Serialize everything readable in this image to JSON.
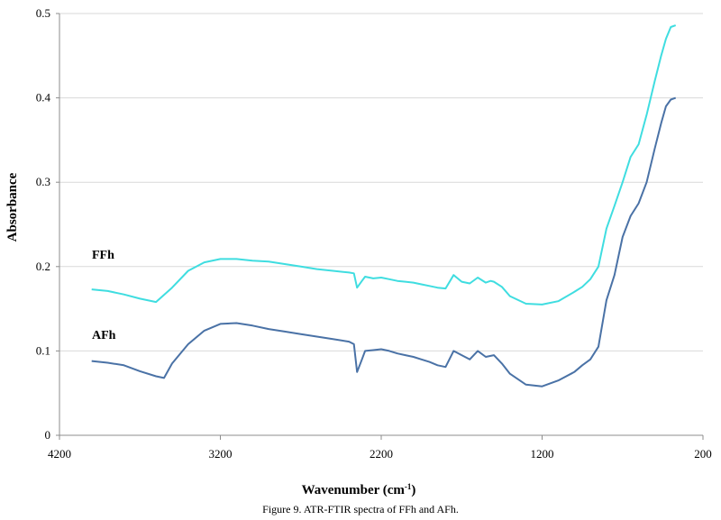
{
  "chart_data": {
    "type": "line",
    "title": "",
    "caption": "Figure 9. ATR-FTIR spectra of FFh and AFh.",
    "xlabel": "Wavenumber (cm",
    "xlabel_sup": "-1",
    "xlabel_suffix": ")",
    "ylabel": "Absorbance",
    "xlim": [
      4200,
      200
    ],
    "ylim": [
      0,
      0.5
    ],
    "xticks": [
      4200,
      3200,
      2200,
      1200,
      200
    ],
    "yticks": [
      0,
      0.1,
      0.2,
      0.3,
      0.4,
      0.5
    ],
    "xtick_labels": [
      "4200",
      "3200",
      "2200",
      "1200",
      "200"
    ],
    "ytick_labels": [
      "0",
      "0.1",
      "0.2",
      "0.3",
      "0.4",
      "0.5"
    ],
    "grid": "horizontal",
    "series": [
      {
        "name": "FFh",
        "color": "#3fdde0",
        "x": [
          4000,
          3900,
          3800,
          3700,
          3600,
          3500,
          3400,
          3300,
          3200,
          3100,
          3000,
          2900,
          2800,
          2700,
          2600,
          2500,
          2400,
          2370,
          2350,
          2320,
          2300,
          2250,
          2200,
          2150,
          2100,
          2050,
          2000,
          1950,
          1900,
          1850,
          1800,
          1750,
          1700,
          1650,
          1600,
          1550,
          1520,
          1500,
          1450,
          1400,
          1300,
          1200,
          1100,
          1000,
          950,
          900,
          850,
          800,
          750,
          700,
          650,
          600,
          550,
          500,
          460,
          430,
          400,
          370
        ],
        "y": [
          0.173,
          0.171,
          0.167,
          0.162,
          0.158,
          0.175,
          0.195,
          0.205,
          0.209,
          0.209,
          0.207,
          0.206,
          0.203,
          0.2,
          0.197,
          0.195,
          0.193,
          0.192,
          0.175,
          0.183,
          0.188,
          0.186,
          0.187,
          0.185,
          0.183,
          0.182,
          0.181,
          0.179,
          0.177,
          0.175,
          0.174,
          0.19,
          0.182,
          0.18,
          0.187,
          0.181,
          0.183,
          0.182,
          0.176,
          0.165,
          0.156,
          0.155,
          0.159,
          0.17,
          0.176,
          0.185,
          0.2,
          0.245,
          0.272,
          0.3,
          0.33,
          0.345,
          0.38,
          0.42,
          0.45,
          0.47,
          0.484,
          0.486
        ]
      },
      {
        "name": "AFh",
        "color": "#4a72a6",
        "x": [
          4000,
          3900,
          3800,
          3700,
          3600,
          3550,
          3500,
          3400,
          3300,
          3200,
          3100,
          3000,
          2900,
          2800,
          2700,
          2600,
          2500,
          2400,
          2370,
          2350,
          2320,
          2300,
          2250,
          2200,
          2150,
          2100,
          2050,
          2000,
          1950,
          1900,
          1850,
          1800,
          1750,
          1700,
          1650,
          1600,
          1550,
          1500,
          1450,
          1400,
          1300,
          1200,
          1100,
          1000,
          950,
          900,
          850,
          800,
          750,
          700,
          650,
          600,
          550,
          500,
          460,
          430,
          400,
          370
        ],
        "y": [
          0.088,
          0.086,
          0.083,
          0.076,
          0.07,
          0.068,
          0.085,
          0.108,
          0.124,
          0.132,
          0.133,
          0.13,
          0.126,
          0.123,
          0.12,
          0.117,
          0.114,
          0.111,
          0.108,
          0.075,
          0.09,
          0.1,
          0.101,
          0.102,
          0.1,
          0.097,
          0.095,
          0.093,
          0.09,
          0.087,
          0.083,
          0.081,
          0.1,
          0.095,
          0.09,
          0.1,
          0.093,
          0.095,
          0.085,
          0.073,
          0.06,
          0.058,
          0.065,
          0.075,
          0.083,
          0.09,
          0.105,
          0.16,
          0.19,
          0.235,
          0.26,
          0.275,
          0.3,
          0.34,
          0.37,
          0.39,
          0.398,
          0.4
        ]
      }
    ]
  }
}
